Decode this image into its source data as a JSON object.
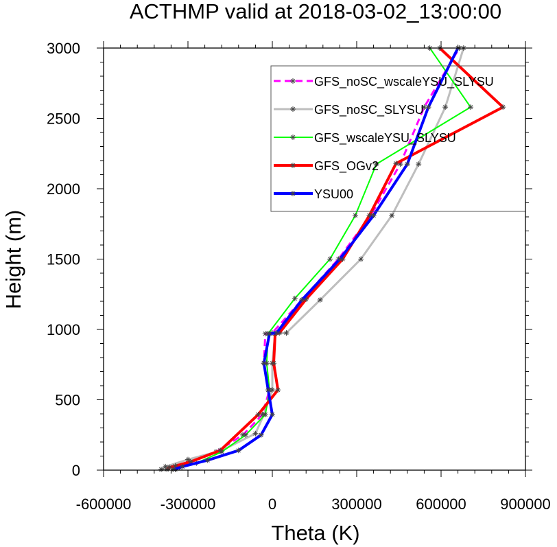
{
  "chart_data": {
    "type": "line",
    "title": "ACTHMP valid at 2018-03-02_13:00:00",
    "xlabel": "Theta (K)",
    "ylabel": "Height (m)",
    "xlim": [
      -600000,
      900000
    ],
    "ylim": [
      0,
      3000
    ],
    "xticks": [
      -600000,
      -300000,
      0,
      300000,
      600000,
      900000
    ],
    "xtick_labels": [
      "-600000",
      "-300000",
      "0",
      "300000",
      "600000",
      "900000"
    ],
    "yticks": [
      0,
      500,
      1000,
      1500,
      2000,
      2500,
      3000
    ],
    "ytick_labels": [
      "0",
      "500",
      "1000",
      "1500",
      "2000",
      "2500",
      "3000"
    ],
    "grid": false,
    "legend_position": "top-right",
    "series": [
      {
        "name": "GFS_noSC_wscaleYSU_SLYSU",
        "color": "#ff00ff",
        "dashed": true,
        "line_width": 3,
        "x": [
          -350000,
          -335000,
          -290000,
          -200000,
          -105000,
          -35000,
          -10000,
          -30000,
          -25000,
          0,
          105000,
          235000,
          350000,
          455000,
          540000,
          665000
        ],
        "y": [
          10,
          30,
          60,
          130,
          250,
          395,
          570,
          760,
          970,
          975,
          1210,
          1500,
          1810,
          2175,
          2580,
          3000
        ]
      },
      {
        "name": "GFS_noSC_SLYSU",
        "color": "#bebebe",
        "dashed": false,
        "line_width": 3,
        "x": [
          -395000,
          -380000,
          -300000,
          -180000,
          -60000,
          -30000,
          0,
          0,
          10000,
          50000,
          170000,
          315000,
          425000,
          520000,
          615000,
          680000
        ],
        "y": [
          5,
          25,
          75,
          140,
          260,
          395,
          570,
          760,
          970,
          975,
          1210,
          1500,
          1810,
          2175,
          2580,
          3000
        ]
      },
      {
        "name": "GFS_wscaleYSU_SLYSU",
        "color": "#00ff00",
        "dashed": false,
        "line_width": 2,
        "x": [
          -345000,
          -330000,
          -270000,
          -180000,
          -95000,
          -25000,
          -10000,
          -20000,
          -15000,
          80000,
          205000,
          295000,
          370000,
          705000,
          560000
        ],
        "y": [
          5,
          20,
          50,
          130,
          250,
          395,
          570,
          760,
          970,
          1220,
          1500,
          1810,
          2175,
          2580,
          3000
        ]
      },
      {
        "name": "GFS_OGv2",
        "color": "#ff0000",
        "dashed": false,
        "line_width": 4,
        "x": [
          -375000,
          -365000,
          -345000,
          -290000,
          -185000,
          -50000,
          20000,
          5000,
          10000,
          25000,
          120000,
          250000,
          345000,
          440000,
          820000,
          595000
        ],
        "y": [
          5,
          20,
          30,
          60,
          140,
          395,
          570,
          760,
          970,
          975,
          1215,
          1500,
          1810,
          2180,
          2580,
          3000
        ]
      },
      {
        "name": "YSU00",
        "color": "#0000ff",
        "dashed": false,
        "line_width": 4,
        "x": [
          -350000,
          -320000,
          -230000,
          -120000,
          -40000,
          0,
          -15000,
          -30000,
          -10000,
          15000,
          105000,
          240000,
          360000,
          480000,
          555000,
          660000
        ],
        "y": [
          5,
          25,
          70,
          140,
          250,
          395,
          570,
          760,
          970,
          975,
          1210,
          1500,
          1810,
          2175,
          2580,
          3000
        ]
      }
    ]
  }
}
